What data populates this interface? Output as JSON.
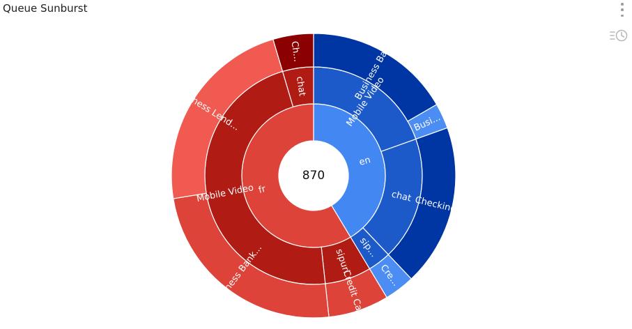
{
  "header": {
    "title": "Queue Sunburst",
    "menu_icon": "more-vert-icon",
    "history_icon": "history-icon"
  },
  "chart_data": {
    "type": "sunburst",
    "title": "Queue Sunburst",
    "center_label": "870",
    "palette": {
      "fr_ring1": "#dd4339",
      "fr_ring2": "#b01b14",
      "fr_ring3_light": "#f05a51",
      "fr_ring3_dark": "#8b0000",
      "en_ring1": "#4388f2",
      "en_ring2": "#1c5ac9",
      "en_ring3_dark": "#0035a4",
      "en_ring3_light": "#4b8df2"
    },
    "tree": [
      {
        "label": "en",
        "value": 360,
        "children": [
          {
            "label": "Mobile Video",
            "value": 170,
            "children": [
              {
                "label": "Business Bank...",
                "value": 145
              },
              {
                "label": "Busi...",
                "value": 25
              }
            ]
          },
          {
            "label": "chat",
            "value": 160,
            "children": [
              {
                "label": "Checking",
                "value": 160
              }
            ]
          },
          {
            "label": "sip...",
            "value": 30,
            "children": [
              {
                "label": "Cre...",
                "value": 30
              }
            ]
          }
        ]
      },
      {
        "label": "fr",
        "value": 510,
        "children": [
          {
            "label": "sipuri",
            "value": 60,
            "children": [
              {
                "label": "Credit Ca...",
                "value": 60
              }
            ]
          },
          {
            "label": "Mobile Video",
            "value": 410,
            "children": [
              {
                "label": "Business Bank...",
                "value": 210
              },
              {
                "label": "Business Lend...",
                "value": 200
              }
            ]
          },
          {
            "label": "chat",
            "value": 40,
            "children": [
              {
                "label": "Ch...",
                "value": 40
              }
            ]
          }
        ]
      }
    ]
  }
}
